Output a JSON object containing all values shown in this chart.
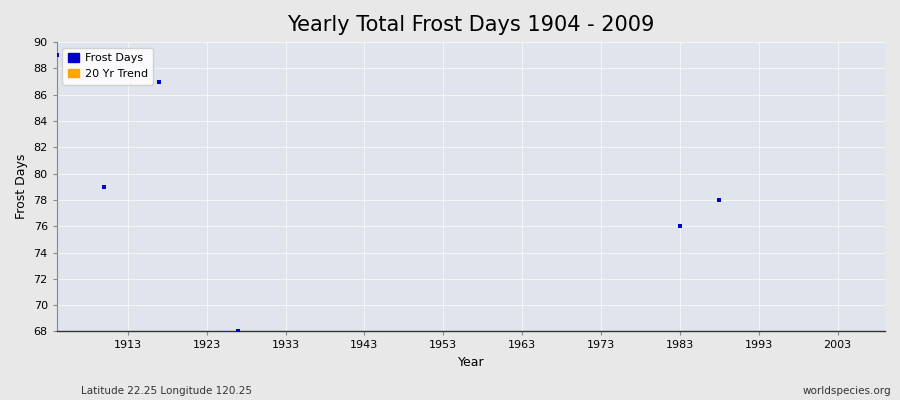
{
  "title": "Yearly Total Frost Days 1904 - 2009",
  "xlabel": "Year",
  "ylabel": "Frost Days",
  "xlim": [
    1904,
    2009
  ],
  "ylim": [
    68,
    90
  ],
  "yticks": [
    68,
    70,
    72,
    74,
    76,
    78,
    80,
    82,
    84,
    86,
    88,
    90
  ],
  "xticks": [
    1913,
    1923,
    1933,
    1943,
    1953,
    1963,
    1973,
    1983,
    1993,
    2003
  ],
  "frost_days_x": [
    1904,
    1910,
    1917,
    1927,
    1983,
    1988
  ],
  "frost_days_y": [
    89.0,
    79.0,
    87.0,
    68.0,
    76.0,
    78.0
  ],
  "frost_color": "#0000cc",
  "trend_color": "#FFA500",
  "figure_bg_color": "#e8e8e8",
  "plot_bg_color": "#e0e4ec",
  "legend_frost_label": "Frost Days",
  "legend_trend_label": "20 Yr Trend",
  "subtitle_left": "Latitude 22.25 Longitude 120.25",
  "subtitle_right": "worldspecies.org",
  "title_fontsize": 15,
  "axis_label_fontsize": 9,
  "tick_fontsize": 8,
  "legend_fontsize": 8,
  "marker": "s",
  "marker_size": 3
}
